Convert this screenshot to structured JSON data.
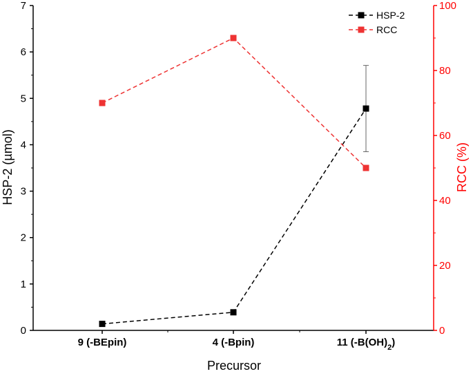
{
  "chart_data": {
    "type": "line",
    "categories": [
      "9 (-BEpin)",
      "4 (-Bpin)",
      "11 (-B(OH)2)"
    ],
    "category_labels": [
      {
        "main": "9 (-BEpin)",
        "sub": ""
      },
      {
        "main": "4 (-Bpin)",
        "sub": ""
      },
      {
        "main": "11 (-B(OH)",
        "sub": "2",
        "after": ")"
      }
    ],
    "xlabel": "Precursor",
    "y_left": {
      "label": "HSP-2 (µmol)",
      "ylim": [
        0,
        7
      ],
      "ticks": [
        "0",
        "1",
        "2",
        "3",
        "4",
        "5",
        "6",
        "7"
      ],
      "color": "#000000"
    },
    "y_right": {
      "label": "RCC (%)",
      "ylim": [
        0,
        100
      ],
      "ticks": [
        "0",
        "20",
        "40",
        "60",
        "80",
        "100"
      ],
      "color": "#ff0000"
    },
    "series": [
      {
        "name": "HSP-2",
        "axis": "left",
        "color": "#000000",
        "line_style": "dashed",
        "marker": "square",
        "values": [
          0.14,
          0.39,
          4.78
        ],
        "error": [
          0.0,
          0.03,
          0.93
        ]
      },
      {
        "name": "RCC",
        "axis": "right",
        "color": "#ee3333",
        "line_style": "dashed",
        "marker": "square",
        "values": [
          70,
          90,
          50
        ]
      }
    ],
    "legend_position": "top-right",
    "grid": false
  }
}
